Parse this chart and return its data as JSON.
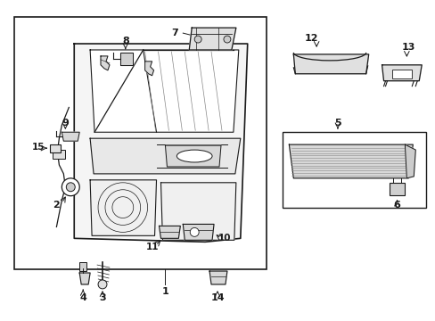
{
  "bg": "#ffffff",
  "lc": "#1a1a1a",
  "fig_w": 4.89,
  "fig_h": 3.6,
  "dpi": 100
}
